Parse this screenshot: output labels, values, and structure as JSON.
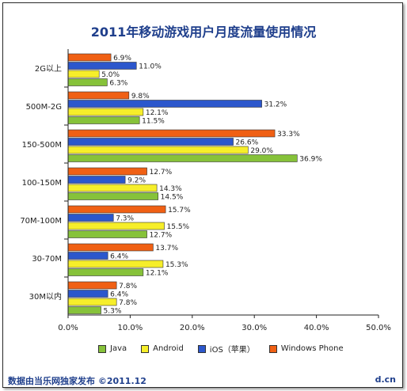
{
  "footer": {
    "left": "数据由当乐网独家发布  ©2011.12",
    "right": "d.cn"
  },
  "chart_data": {
    "type": "bar",
    "orientation": "horizontal",
    "title": "2011年移动游戏用户月度流量使用情况",
    "categories": [
      "2G以上",
      "500M-2G",
      "150-500M",
      "100-150M",
      "70M-100M",
      "30-70M",
      "30M以内"
    ],
    "series": [
      {
        "name": "Windows Phone",
        "color": "#f06014",
        "values": [
          6.9,
          9.8,
          33.3,
          12.7,
          15.7,
          13.7,
          7.8
        ],
        "labels": [
          "6.9%",
          "9.8%",
          "33.3%",
          "12.7%",
          "15.7%",
          "13.7%",
          "7.8%"
        ]
      },
      {
        "name": "iOS（苹果）",
        "color": "#2c57cc",
        "values": [
          11.0,
          31.2,
          26.6,
          9.2,
          7.3,
          6.4,
          6.4
        ],
        "labels": [
          "11.0%",
          "31.2%",
          "26.6%",
          "9.2%",
          "7.3%",
          "6.4%",
          "6.4%"
        ]
      },
      {
        "name": "Android",
        "color": "#f6ee2a",
        "values": [
          5.0,
          12.1,
          29.0,
          14.3,
          15.5,
          15.3,
          7.8
        ],
        "labels": [
          "5.0%",
          "12.1%",
          "29.0%",
          "14.3%",
          "15.5%",
          "15.3%",
          "7.8%"
        ]
      },
      {
        "name": "Java",
        "color": "#86c23a",
        "values": [
          6.3,
          11.5,
          36.9,
          14.5,
          12.7,
          12.1,
          5.3
        ],
        "labels": [
          "6.3%",
          "11.5%",
          "36.9%",
          "14.5%",
          "12.7%",
          "12.1%",
          "5.3%"
        ]
      }
    ],
    "legend_order": [
      "Java",
      "Android",
      "iOS（苹果）",
      "Windows Phone"
    ],
    "xlim": [
      0,
      50
    ],
    "xticks": [
      "0.0%",
      "10.0%",
      "20.0%",
      "30.0%",
      "40.0%",
      "50.0%"
    ],
    "legend_position": "bottom",
    "grid": false
  }
}
